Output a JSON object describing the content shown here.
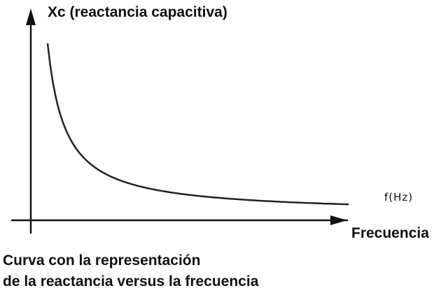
{
  "chart_data": {
    "type": "line",
    "ylabel": "Xc (reactancia capacitiva)",
    "xlabel": "Frecuencia",
    "x_unit_label": "f(Hz)",
    "caption": [
      "Curva con la representación",
      "de la reactancia versus la frecuencia"
    ],
    "grid": false,
    "legend": "none",
    "x_ticks": [],
    "y_ticks": [],
    "series": [
      {
        "x": [
          1,
          1.5,
          2,
          3,
          4,
          6,
          8,
          11,
          14,
          18
        ],
        "y": [
          1.0,
          0.667,
          0.5,
          0.333,
          0.25,
          0.167,
          0.125,
          0.091,
          0.071,
          0.056
        ]
      }
    ],
    "xlim": [
      0,
      18
    ],
    "ylim": [
      0,
      1.15
    ],
    "colors": {
      "axis": "#111111",
      "curve": "#222222"
    }
  }
}
